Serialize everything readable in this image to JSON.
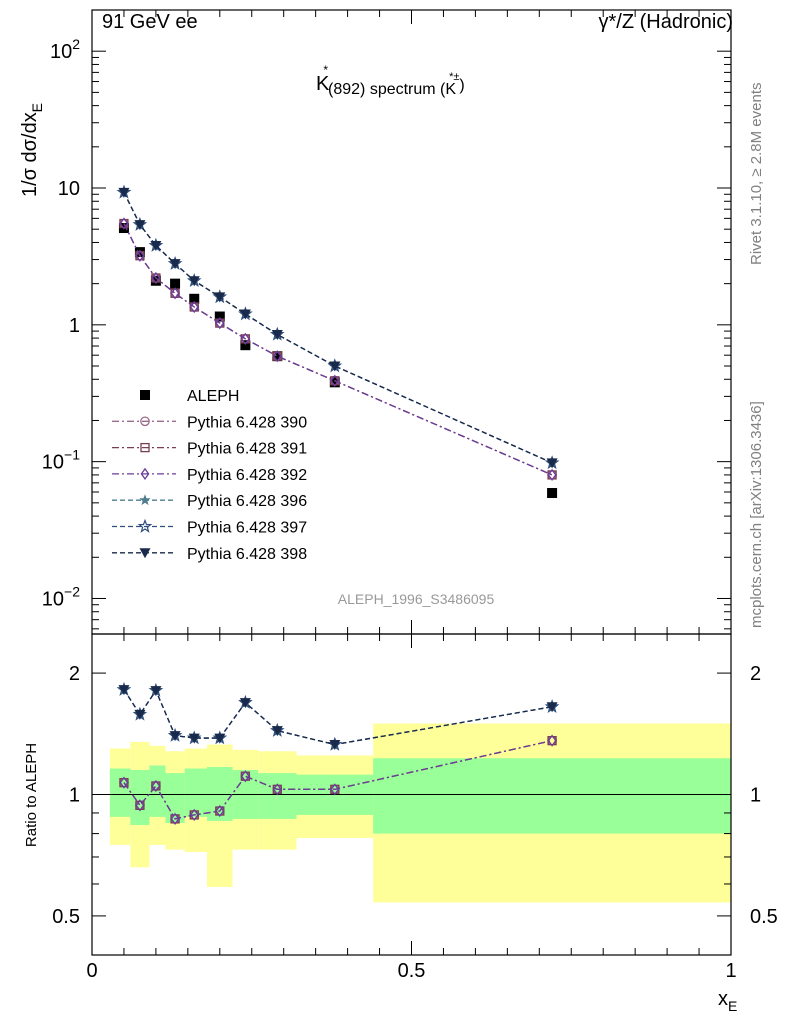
{
  "header": {
    "left": "91 GeV ee",
    "right": "γ*/Z (Hadronic)"
  },
  "side_labels": {
    "rivet": "Rivet 3.1.10, ≥ 2.8M events",
    "mcplots": "mcplots.cern.ch [arXiv:1306.3436]"
  },
  "chart_data": [
    {
      "type": "scatter",
      "title_parts": {
        "main": "K",
        "star": "*",
        "sub": "(892) spectrum (K",
        "sup": "*±",
        "close": ")"
      },
      "ylabel": "1/σ dσ/dx",
      "ylabel_sub": "E",
      "yscale": "log",
      "xlim": [
        0,
        1
      ],
      "ylim": [
        0.0055,
        200
      ],
      "yticks": [
        {
          "value": 100,
          "base": "10",
          "exp": "2"
        },
        {
          "value": 10,
          "base": "10",
          "exp": ""
        },
        {
          "value": 1,
          "base": "1",
          "exp": ""
        },
        {
          "value": 0.1,
          "base": "10",
          "exp": "−1"
        },
        {
          "value": 0.01,
          "base": "10",
          "exp": "−2"
        }
      ],
      "watermark": "ALEPH_1996_S3486095",
      "x": [
        0.05,
        0.075,
        0.1,
        0.13,
        0.16,
        0.2,
        0.24,
        0.29,
        0.38,
        0.72
      ],
      "series": [
        {
          "name": "ALEPH",
          "marker": "square-filled",
          "color": "#000000",
          "values": [
            5.1,
            3.4,
            2.1,
            2.0,
            1.55,
            1.15,
            0.71,
            0.59,
            0.38,
            0.059
          ]
        },
        {
          "name": "Pythia 6.428 390",
          "marker": "circle-open",
          "color": "#9b6b8e",
          "dash": "7,3,2,3",
          "values": [
            5.5,
            3.2,
            2.2,
            1.7,
            1.35,
            1.03,
            0.79,
            0.59,
            0.39,
            0.08
          ]
        },
        {
          "name": "Pythia 6.428 391",
          "marker": "square-open",
          "color": "#7a3d52",
          "dash": "7,3,2,3",
          "values": [
            5.5,
            3.2,
            2.2,
            1.7,
            1.35,
            1.03,
            0.79,
            0.59,
            0.39,
            0.08
          ]
        },
        {
          "name": "Pythia 6.428 392",
          "marker": "diamond-open",
          "color": "#6a3d9a",
          "dash": "7,3,2,3",
          "values": [
            5.5,
            3.2,
            2.2,
            1.7,
            1.35,
            1.03,
            0.79,
            0.59,
            0.39,
            0.08
          ]
        },
        {
          "name": "Pythia 6.428 396",
          "marker": "star-filled",
          "color": "#4f7f8f",
          "dash": "5,3",
          "values": [
            9.3,
            5.4,
            3.8,
            2.8,
            2.1,
            1.6,
            1.2,
            0.85,
            0.5,
            0.098
          ]
        },
        {
          "name": "Pythia 6.428 397",
          "marker": "star-open",
          "color": "#2f4f7f",
          "dash": "5,3",
          "values": [
            9.3,
            5.4,
            3.8,
            2.8,
            2.1,
            1.6,
            1.2,
            0.85,
            0.5,
            0.098
          ]
        },
        {
          "name": "Pythia 6.428 398",
          "marker": "triangle-down-filled",
          "color": "#1a2a4a",
          "dash": "5,3",
          "values": [
            9.3,
            5.4,
            3.8,
            2.8,
            2.1,
            1.6,
            1.2,
            0.85,
            0.5,
            0.098
          ]
        }
      ]
    },
    {
      "type": "line",
      "ylabel": "Ratio to ALEPH",
      "yscale": "log",
      "xlim": [
        0,
        1
      ],
      "ylim": [
        0.4,
        2.5
      ],
      "yticks": [
        0.5,
        1,
        2
      ],
      "xticks": [
        0,
        0.5,
        1
      ],
      "xlabel": "x",
      "xlabel_sub": "E",
      "bins": [
        {
          "x0": 0.028,
          "x1": 0.06,
          "inner": [
            0.88,
            1.16
          ],
          "outer": [
            0.75,
            1.3
          ]
        },
        {
          "x0": 0.06,
          "x1": 0.09,
          "inner": [
            0.84,
            1.15
          ],
          "outer": [
            0.66,
            1.35
          ]
        },
        {
          "x0": 0.09,
          "x1": 0.115,
          "inner": [
            0.88,
            1.18
          ],
          "outer": [
            0.75,
            1.32
          ]
        },
        {
          "x0": 0.115,
          "x1": 0.145,
          "inner": [
            0.85,
            1.13
          ],
          "outer": [
            0.73,
            1.28
          ]
        },
        {
          "x0": 0.145,
          "x1": 0.18,
          "inner": [
            0.88,
            1.16
          ],
          "outer": [
            0.72,
            1.3
          ]
        },
        {
          "x0": 0.18,
          "x1": 0.22,
          "inner": [
            0.86,
            1.17
          ],
          "outer": [
            0.59,
            1.33
          ]
        },
        {
          "x0": 0.22,
          "x1": 0.26,
          "inner": [
            0.87,
            1.15
          ],
          "outer": [
            0.73,
            1.29
          ]
        },
        {
          "x0": 0.26,
          "x1": 0.32,
          "inner": [
            0.87,
            1.13
          ],
          "outer": [
            0.73,
            1.28
          ]
        },
        {
          "x0": 0.32,
          "x1": 0.44,
          "inner": [
            0.89,
            1.12
          ],
          "outer": [
            0.78,
            1.25
          ]
        },
        {
          "x0": 0.44,
          "x1": 1.0,
          "inner": [
            0.8,
            1.23
          ],
          "outer": [
            0.54,
            1.5
          ]
        }
      ],
      "x": [
        0.05,
        0.075,
        0.1,
        0.13,
        0.16,
        0.2,
        0.24,
        0.29,
        0.38,
        0.72
      ],
      "series": [
        {
          "name": "Pythia 6.428 390",
          "marker": "circle-open",
          "color": "#9b6b8e",
          "dash": "7,3,2,3",
          "values": [
            1.07,
            0.94,
            1.05,
            0.87,
            0.89,
            0.91,
            1.11,
            1.03,
            1.03,
            1.36
          ]
        },
        {
          "name": "Pythia 6.428 391",
          "marker": "square-open",
          "color": "#7a3d52",
          "dash": "7,3,2,3",
          "values": [
            1.07,
            0.94,
            1.05,
            0.87,
            0.89,
            0.91,
            1.11,
            1.03,
            1.03,
            1.36
          ]
        },
        {
          "name": "Pythia 6.428 392",
          "marker": "diamond-open",
          "color": "#6a3d9a",
          "dash": "7,3,2,3",
          "values": [
            1.07,
            0.94,
            1.05,
            0.87,
            0.89,
            0.91,
            1.11,
            1.03,
            1.03,
            1.36
          ]
        },
        {
          "name": "Pythia 6.428 396",
          "marker": "star-filled",
          "color": "#4f7f8f",
          "dash": "5,3",
          "values": [
            1.82,
            1.58,
            1.81,
            1.4,
            1.38,
            1.38,
            1.69,
            1.44,
            1.33,
            1.65
          ]
        },
        {
          "name": "Pythia 6.428 397",
          "marker": "star-open",
          "color": "#2f4f7f",
          "dash": "5,3",
          "values": [
            1.82,
            1.58,
            1.81,
            1.4,
            1.38,
            1.38,
            1.69,
            1.44,
            1.33,
            1.65
          ]
        },
        {
          "name": "Pythia 6.428 398",
          "marker": "triangle-down-filled",
          "color": "#1a2a4a",
          "dash": "5,3",
          "values": [
            1.82,
            1.58,
            1.81,
            1.4,
            1.38,
            1.38,
            1.69,
            1.44,
            1.33,
            1.65
          ]
        }
      ]
    }
  ],
  "colors": {
    "band_inner": "#99ff99",
    "band_outer": "#ffff99",
    "frame": "#000000",
    "side_text": "#808080",
    "watermark": "#999999"
  }
}
